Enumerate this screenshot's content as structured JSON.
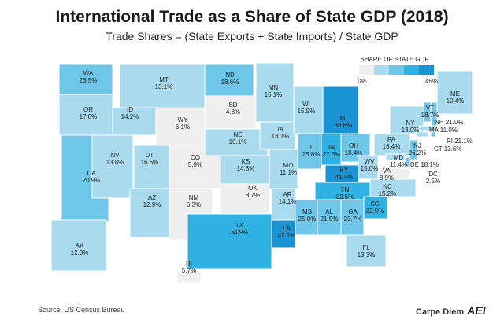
{
  "title": "International Trade as a Share of State GDP (2018)",
  "subtitle": "Trade Shares = (State Exports + State Imports) / State GDP",
  "legend": {
    "title": "SHARE OF STATE GDP",
    "min_label": "0%",
    "max_label": "45%",
    "bins": [
      0,
      9,
      18,
      27,
      36,
      45
    ],
    "colors": [
      "#efefef",
      "#a9daed",
      "#6ec6e8",
      "#2fb2e3",
      "#1993d3"
    ]
  },
  "source": "Source: US Census Bureau",
  "brand": "Carpe Diem",
  "logo": "AEI",
  "chart_data": {
    "type": "choropleth",
    "unit": "%",
    "states": [
      {
        "abbr": "WA",
        "value": 23.5
      },
      {
        "abbr": "OR",
        "value": 17.8
      },
      {
        "abbr": "CA",
        "value": 20.9
      },
      {
        "abbr": "NV",
        "value": 13.8
      },
      {
        "abbr": "ID",
        "value": 14.2
      },
      {
        "abbr": "MT",
        "value": 13.1
      },
      {
        "abbr": "WY",
        "value": 6.1
      },
      {
        "abbr": "UT",
        "value": 16.6
      },
      {
        "abbr": "AZ",
        "value": 12.9
      },
      {
        "abbr": "CO",
        "value": 5.9
      },
      {
        "abbr": "NM",
        "value": 6.3
      },
      {
        "abbr": "ND",
        "value": 18.6
      },
      {
        "abbr": "SD",
        "value": 4.8
      },
      {
        "abbr": "NE",
        "value": 10.1
      },
      {
        "abbr": "KS",
        "value": 14.3
      },
      {
        "abbr": "OK",
        "value": 8.7
      },
      {
        "abbr": "TX",
        "value": 34.9
      },
      {
        "abbr": "MN",
        "value": 15.1
      },
      {
        "abbr": "IA",
        "value": 13.1
      },
      {
        "abbr": "MO",
        "value": 11.1
      },
      {
        "abbr": "AR",
        "value": 14.1
      },
      {
        "abbr": "LA",
        "value": 42.1
      },
      {
        "abbr": "WI",
        "value": 15.9
      },
      {
        "abbr": "IL",
        "value": 25.8
      },
      {
        "abbr": "MI",
        "value": 38.8
      },
      {
        "abbr": "IN",
        "value": 27.6
      },
      {
        "abbr": "OH",
        "value": 18.4
      },
      {
        "abbr": "KY",
        "value": 41.4
      },
      {
        "abbr": "TN",
        "value": 32.5
      },
      {
        "abbr": "MS",
        "value": 25.0
      },
      {
        "abbr": "AL",
        "value": 21.5
      },
      {
        "abbr": "GA",
        "value": 23.7
      },
      {
        "abbr": "FL",
        "value": 13.3
      },
      {
        "abbr": "SC",
        "value": 32.5
      },
      {
        "abbr": "NC",
        "value": 15.2
      },
      {
        "abbr": "VA",
        "value": 8.9
      },
      {
        "abbr": "WV",
        "value": 15.0
      },
      {
        "abbr": "PA",
        "value": 16.4
      },
      {
        "abbr": "NY",
        "value": 13.0
      },
      {
        "abbr": "VT",
        "value": 18.7
      },
      {
        "abbr": "NH",
        "value": 21.0
      },
      {
        "abbr": "MA",
        "value": 11.0
      },
      {
        "abbr": "CT",
        "value": 13.6
      },
      {
        "abbr": "RI",
        "value": 21.1
      },
      {
        "abbr": "NJ",
        "value": 26.2
      },
      {
        "abbr": "DE",
        "value": 18.1
      },
      {
        "abbr": "MD",
        "value": 11.4
      },
      {
        "abbr": "DC",
        "value": 2.5
      },
      {
        "abbr": "ME",
        "value": 10.4
      },
      {
        "abbr": "AK",
        "value": 12.3
      },
      {
        "abbr": "HI",
        "value": 5.7
      }
    ]
  }
}
